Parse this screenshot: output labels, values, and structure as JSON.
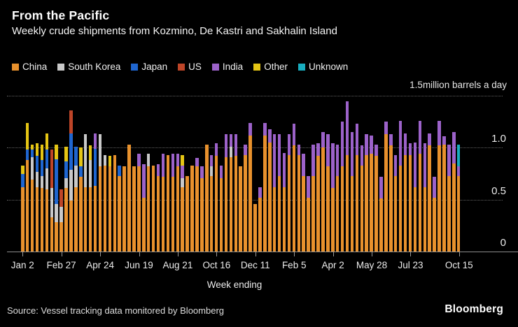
{
  "header": {
    "title": "From the Pacific",
    "subtitle": "Weekly crude shipments from Kozmino, De Kastri and Sakhalin Island"
  },
  "legend": {
    "items": [
      {
        "label": "China",
        "color": "#E8912D"
      },
      {
        "label": "South Korea",
        "color": "#C9C9C9"
      },
      {
        "label": "Japan",
        "color": "#1F66D0"
      },
      {
        "label": "US",
        "color": "#BE4528"
      },
      {
        "label": "India",
        "color": "#9C62C9"
      },
      {
        "label": "Other",
        "color": "#E5C514"
      },
      {
        "label": "Unknown",
        "color": "#18ADBF"
      }
    ]
  },
  "chart_data": {
    "type": "bar",
    "stacked": true,
    "title": "From the Pacific",
    "subtitle": "Weekly crude shipments from Kozmino, De Kastri and Sakhalin Island",
    "unit_note": "1.5million barrels a day",
    "xlabel": "Week ending",
    "ylim": [
      0,
      1.5
    ],
    "grid": "dotted-horizontal",
    "legend_position": "top",
    "series_keys": [
      "China",
      "South Korea",
      "Japan",
      "US",
      "India",
      "Other",
      "Unknown"
    ],
    "colors": [
      "#E8912D",
      "#C9C9C9",
      "#1F66D0",
      "#BE4528",
      "#9C62C9",
      "#E5C514",
      "#18ADBF"
    ],
    "y_ticks": [
      {
        "label": "1.0",
        "value": 1.0
      },
      {
        "label": "0.5",
        "value": 0.5
      },
      {
        "label": "0",
        "value": 0
      }
    ],
    "top_gridline_value": 1.5,
    "x_ticks": [
      {
        "label": "Jan 2",
        "bar": 0
      },
      {
        "label": "Feb 27",
        "bar": 8
      },
      {
        "label": "Apr 24",
        "bar": 16
      },
      {
        "label": "Jun 19",
        "bar": 24
      },
      {
        "label": "Aug 21",
        "bar": 32
      },
      {
        "label": "Oct 16",
        "bar": 40
      },
      {
        "label": "Dec 11",
        "bar": 48
      },
      {
        "label": "Feb 5",
        "bar": 56
      },
      {
        "label": "Apr 2",
        "bar": 64
      },
      {
        "label": "May 28",
        "bar": 72
      },
      {
        "label": "Jul 23",
        "bar": 80
      },
      {
        "label": "Oct 15",
        "bar": 90
      }
    ],
    "bars_order_note": "each bar = [China, South Korea, Japan, US, India, Other, Unknown] in million barrels a day, stacked bottom to top",
    "bars": [
      [
        0.62,
        0,
        0.13,
        0,
        0,
        0.08,
        0
      ],
      [
        0.88,
        0,
        0.1,
        0,
        0,
        0.26,
        0
      ],
      [
        0.69,
        0.22,
        0.07,
        0,
        0,
        0.05,
        0
      ],
      [
        0.62,
        0.15,
        0.15,
        0,
        0,
        0.12,
        0
      ],
      [
        0.61,
        0.12,
        0.15,
        0,
        0,
        0.15,
        0
      ],
      [
        0.6,
        0.2,
        0.18,
        0,
        0,
        0.16,
        0
      ],
      [
        0.33,
        0.28,
        0,
        0.37,
        0,
        0,
        0
      ],
      [
        0.28,
        0.18,
        0.43,
        0,
        0,
        0.14,
        0
      ],
      [
        0.28,
        0.15,
        0,
        0.17,
        0,
        0,
        0
      ],
      [
        0.61,
        0.1,
        0.16,
        0,
        0,
        0.14,
        0
      ],
      [
        0.49,
        0.3,
        0.35,
        0.22,
        0,
        0,
        0
      ],
      [
        0.62,
        0.21,
        0.18,
        0,
        0,
        0,
        0
      ],
      [
        0.72,
        0,
        0.1,
        0,
        0,
        0.18,
        0
      ],
      [
        0.62,
        0.51,
        0,
        0,
        0,
        0,
        0
      ],
      [
        0.62,
        0.26,
        0,
        0,
        0,
        0.14,
        0
      ],
      [
        0.63,
        0,
        0.36,
        0,
        0.15,
        0,
        0
      ],
      [
        0.82,
        0.31,
        0,
        0,
        0,
        0,
        0
      ],
      [
        0.83,
        0.1,
        0,
        0,
        0,
        0,
        0
      ],
      [
        0.82,
        0,
        0,
        0,
        0,
        0.1,
        0
      ],
      [
        0.93,
        0,
        0,
        0,
        0,
        0,
        0
      ],
      [
        0.73,
        0,
        0.1,
        0,
        0,
        0,
        0
      ],
      [
        0.82,
        0,
        0,
        0,
        0,
        0,
        0
      ],
      [
        1.03,
        0,
        0,
        0,
        0,
        0,
        0
      ],
      [
        0.82,
        0,
        0,
        0,
        0,
        0,
        0
      ],
      [
        0.82,
        0,
        0,
        0,
        0.12,
        0,
        0
      ],
      [
        0.52,
        0,
        0,
        0,
        0.32,
        0,
        0
      ],
      [
        0.82,
        0.12,
        0,
        0,
        0,
        0,
        0
      ],
      [
        0.83,
        0,
        0,
        0,
        0,
        0,
        0
      ],
      [
        0.73,
        0,
        0,
        0,
        0.11,
        0,
        0
      ],
      [
        0.72,
        0,
        0,
        0,
        0.22,
        0,
        0
      ],
      [
        0.93,
        0,
        0,
        0,
        0,
        0,
        0
      ],
      [
        0.72,
        0,
        0,
        0,
        0.22,
        0,
        0
      ],
      [
        0.82,
        0,
        0,
        0,
        0.12,
        0,
        0
      ],
      [
        0.62,
        0.09,
        0,
        0,
        0.12,
        0.1,
        0
      ],
      [
        0.73,
        0,
        0,
        0,
        0,
        0,
        0
      ],
      [
        0.83,
        0,
        0,
        0,
        0,
        0,
        0
      ],
      [
        0.82,
        0,
        0,
        0,
        0.08,
        0,
        0
      ],
      [
        0.71,
        0,
        0,
        0,
        0.11,
        0,
        0
      ],
      [
        1.03,
        0,
        0,
        0,
        0,
        0,
        0
      ],
      [
        0.73,
        0.09,
        0,
        0,
        0.11,
        0,
        0
      ],
      [
        0.92,
        0,
        0,
        0,
        0.12,
        0,
        0
      ],
      [
        0.71,
        0,
        0,
        0,
        0.12,
        0,
        0
      ],
      [
        0.91,
        0,
        0,
        0,
        0.22,
        0,
        0
      ],
      [
        0.91,
        0.1,
        0,
        0,
        0.12,
        0,
        0
      ],
      [
        0.92,
        0,
        0,
        0,
        0.21,
        0,
        0
      ],
      [
        0.82,
        0,
        0,
        0,
        0,
        0,
        0
      ],
      [
        0.93,
        0,
        0,
        0,
        0.1,
        0,
        0
      ],
      [
        1.12,
        0,
        0,
        0,
        0.12,
        0,
        0
      ],
      [
        0.46,
        0,
        0,
        0,
        0,
        0,
        0
      ],
      [
        0.52,
        0,
        0,
        0,
        0.1,
        0,
        0
      ],
      [
        1.12,
        0,
        0,
        0,
        0.12,
        0,
        0
      ],
      [
        1.05,
        0,
        0,
        0,
        0.13,
        0,
        0
      ],
      [
        0.62,
        0,
        0,
        0,
        0.51,
        0,
        0
      ],
      [
        0.73,
        0,
        0,
        0,
        0.4,
        0,
        0
      ],
      [
        0.62,
        0,
        0,
        0,
        0.33,
        0,
        0
      ],
      [
        0.93,
        0,
        0,
        0,
        0.2,
        0,
        0
      ],
      [
        1.02,
        0,
        0,
        0,
        0.21,
        0,
        0
      ],
      [
        0.93,
        0,
        0,
        0,
        0.1,
        0,
        0
      ],
      [
        0.73,
        0,
        0,
        0,
        0.21,
        0,
        0
      ],
      [
        0.52,
        0,
        0,
        0,
        0.21,
        0,
        0
      ],
      [
        0.73,
        0,
        0,
        0,
        0.3,
        0,
        0
      ],
      [
        0.92,
        0,
        0,
        0,
        0.12,
        0,
        0
      ],
      [
        1.0,
        0,
        0,
        0,
        0.15,
        0,
        0
      ],
      [
        0.82,
        0,
        0,
        0,
        0.31,
        0,
        0
      ],
      [
        0.61,
        0,
        0,
        0,
        0.43,
        0,
        0
      ],
      [
        0.73,
        0,
        0,
        0,
        0.3,
        0,
        0
      ],
      [
        0.82,
        0,
        0,
        0,
        0.43,
        0,
        0
      ],
      [
        0.93,
        0,
        0,
        0,
        0.52,
        0,
        0
      ],
      [
        0.73,
        0,
        0,
        0,
        0.42,
        0,
        0
      ],
      [
        0.93,
        0,
        0,
        0,
        0.3,
        0,
        0
      ],
      [
        0.83,
        0,
        0,
        0,
        0.19,
        0,
        0
      ],
      [
        0.93,
        0,
        0,
        0,
        0.2,
        0,
        0
      ],
      [
        0.94,
        0,
        0,
        0,
        0.18,
        0,
        0
      ],
      [
        0.92,
        0,
        0,
        0,
        0.11,
        0,
        0
      ],
      [
        0.51,
        0,
        0,
        0,
        0.21,
        0,
        0
      ],
      [
        1.13,
        0,
        0,
        0,
        0.12,
        0,
        0
      ],
      [
        1.02,
        0,
        0,
        0,
        0.11,
        0,
        0
      ],
      [
        0.73,
        0,
        0,
        0,
        0.2,
        0,
        0
      ],
      [
        0.83,
        0,
        0,
        0,
        0.43,
        0,
        0
      ],
      [
        0.93,
        0,
        0,
        0,
        0.21,
        0,
        0
      ],
      [
        0.93,
        0,
        0,
        0,
        0.11,
        0,
        0
      ],
      [
        0.62,
        0,
        0,
        0,
        0.43,
        0,
        0
      ],
      [
        0.94,
        0,
        0,
        0,
        0.32,
        0,
        0
      ],
      [
        0.62,
        0,
        0,
        0,
        0.42,
        0,
        0
      ],
      [
        1.02,
        0,
        0,
        0,
        0.12,
        0,
        0
      ],
      [
        0.52,
        0,
        0,
        0,
        0.2,
        0,
        0
      ],
      [
        1.02,
        0,
        0,
        0,
        0.24,
        0,
        0
      ],
      [
        1.03,
        0,
        0,
        0,
        0.08,
        0,
        0
      ],
      [
        0.73,
        0,
        0,
        0,
        0.3,
        0,
        0
      ],
      [
        0.85,
        0,
        0,
        0,
        0.3,
        0,
        0
      ],
      [
        0.73,
        0,
        0,
        0,
        0.09,
        0,
        0.21
      ]
    ]
  },
  "footer": {
    "source": "Source: Vessel tracking data monitored by Bloomberg",
    "logo": "Bloomberg"
  }
}
